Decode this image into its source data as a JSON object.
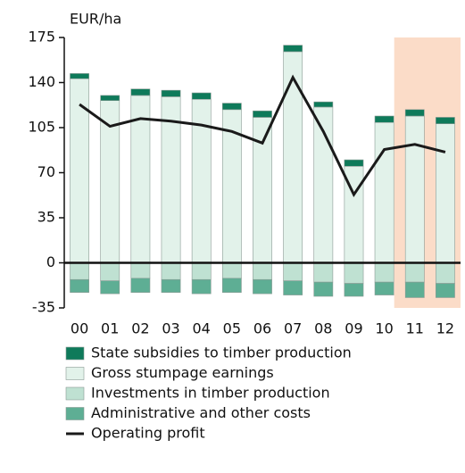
{
  "chart_data": {
    "type": "bar",
    "y_label": "EUR/ha",
    "categories": [
      "00",
      "01",
      "02",
      "03",
      "04",
      "05",
      "06",
      "07",
      "08",
      "09",
      "10",
      "11",
      "12"
    ],
    "series": [
      {
        "name": "State subsidies to timber production",
        "color": "#0e7a5a",
        "values": [
          4,
          4,
          5,
          5,
          5,
          5,
          5,
          5,
          4,
          5,
          5,
          5,
          5
        ]
      },
      {
        "name": "Gross stumpage earnings",
        "color": "#e2f2ea",
        "values": [
          143,
          126,
          130,
          129,
          127,
          119,
          113,
          164,
          121,
          75,
          109,
          114,
          108
        ]
      },
      {
        "name": "Investments in timber production",
        "color": "#bfe1d2",
        "values": [
          -13,
          -14,
          -12,
          -13,
          -13,
          -12,
          -13,
          -14,
          -15,
          -16,
          -15,
          -15,
          -16
        ]
      },
      {
        "name": "Administrative and other costs",
        "color": "#5eae94",
        "values": [
          -10,
          -10,
          -11,
          -10,
          -11,
          -11,
          -11,
          -11,
          -11,
          -10,
          -10,
          -12,
          -11
        ]
      },
      {
        "name": "Operating profit",
        "type": "line",
        "color": "#1a1a1a",
        "values": [
          123,
          106,
          112,
          110,
          107,
          102,
          93,
          144,
          102,
          53,
          88,
          92,
          86
        ]
      }
    ],
    "ylim": [
      -35,
      175
    ],
    "yticks": [
      -35,
      0,
      35,
      70,
      105,
      140,
      175
    ],
    "shade": {
      "from": "11",
      "color": "#fbdcc8"
    }
  }
}
